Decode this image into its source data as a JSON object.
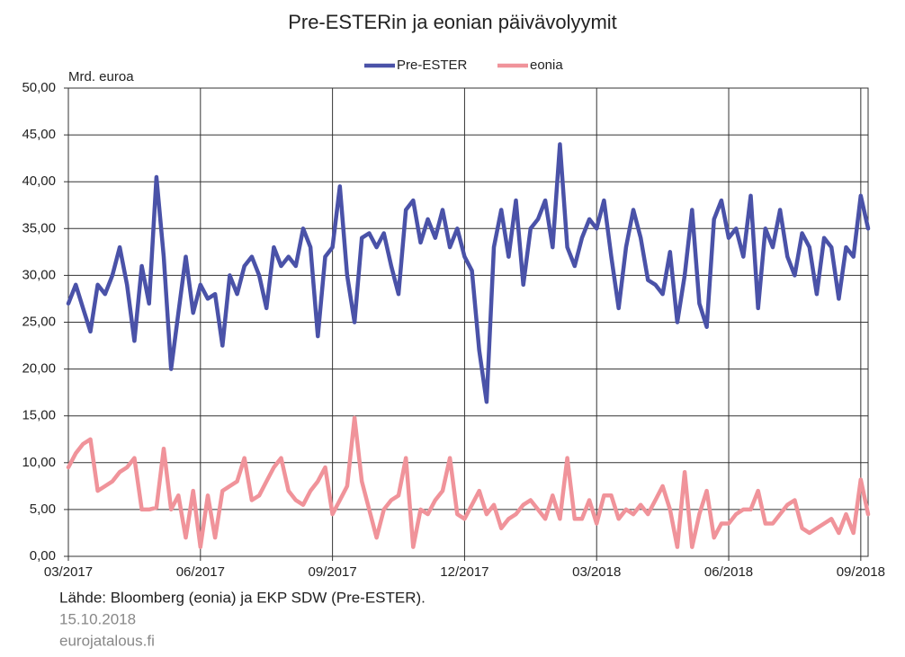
{
  "chart_data": {
    "type": "line",
    "title": "Pre-ESTERin ja eonian  päivävolyymit",
    "y_label": "Mrd. euroa",
    "source": "Lähde: Bloomberg (eonia) ja EKP SDW (Pre-ESTER).",
    "date": "15.10.2018",
    "site": "eurojatalous.fi",
    "legend": "top",
    "grid": true,
    "ylim": [
      0,
      50
    ],
    "yticks": [
      {
        "value": 0,
        "label": "0,00"
      },
      {
        "value": 5,
        "label": "5,00"
      },
      {
        "value": 10,
        "label": "10,00"
      },
      {
        "value": 15,
        "label": "15,00"
      },
      {
        "value": 20,
        "label": "20,00"
      },
      {
        "value": 25,
        "label": "25,00"
      },
      {
        "value": 30,
        "label": "30,00"
      },
      {
        "value": 35,
        "label": "35,00"
      },
      {
        "value": 40,
        "label": "40,00"
      },
      {
        "value": 45,
        "label": "45,00"
      },
      {
        "value": 50,
        "label": "50,00"
      }
    ],
    "categories": [
      "03/2017",
      null,
      null,
      null,
      null,
      null,
      null,
      null,
      null,
      null,
      null,
      null,
      null,
      null,
      null,
      null,
      null,
      null,
      "06/2017",
      null,
      null,
      null,
      null,
      null,
      null,
      null,
      null,
      null,
      null,
      null,
      null,
      null,
      null,
      null,
      null,
      null,
      "09/2017",
      null,
      null,
      null,
      null,
      null,
      null,
      null,
      null,
      null,
      null,
      null,
      null,
      null,
      null,
      null,
      null,
      null,
      "12/2017",
      null,
      null,
      null,
      null,
      null,
      null,
      null,
      null,
      null,
      null,
      null,
      null,
      null,
      null,
      null,
      null,
      null,
      "03/2018",
      null,
      null,
      null,
      null,
      null,
      null,
      null,
      null,
      null,
      null,
      null,
      null,
      null,
      null,
      null,
      null,
      null,
      "06/2018",
      null,
      null,
      null,
      null,
      null,
      null,
      null,
      null,
      null,
      null,
      null,
      null,
      null,
      null,
      null,
      null,
      null,
      "09/2018",
      null
    ],
    "series": [
      {
        "name": "Pre-ESTER",
        "color": "#4a52a8",
        "values": [
          27,
          29,
          26.5,
          24,
          29,
          28,
          30,
          33,
          29,
          23,
          31,
          27,
          40.5,
          32,
          20,
          26,
          32,
          26,
          29,
          27.5,
          28,
          22.5,
          30,
          28,
          31,
          32,
          30,
          26.5,
          33,
          31,
          32,
          31,
          35,
          33,
          23.5,
          32,
          33,
          39.5,
          30,
          25,
          34,
          34.5,
          33,
          34.5,
          31,
          28,
          37,
          38,
          33.5,
          36,
          34,
          37,
          33,
          35,
          32,
          30.5,
          22,
          16.5,
          33,
          37,
          32,
          38,
          29,
          35,
          36,
          38,
          33,
          44,
          33,
          31,
          34,
          36,
          35,
          38,
          32,
          26.5,
          33,
          37,
          34,
          29.5,
          29,
          28,
          32.5,
          25,
          30,
          37,
          27,
          24.5,
          36,
          38,
          34,
          35,
          32,
          38.5,
          26.5,
          35,
          33,
          37,
          32,
          30,
          34.5,
          33,
          28,
          34,
          33,
          27.5,
          33,
          32,
          38.5,
          35
        ]
      },
      {
        "name": "eonia",
        "color": "#f0939a",
        "values": [
          9.5,
          11,
          12,
          12.5,
          7,
          7.5,
          8,
          9,
          9.5,
          10.5,
          5,
          5,
          5.2,
          11.5,
          5,
          6.5,
          2,
          7,
          1,
          6.5,
          2,
          7,
          7.5,
          8,
          10.5,
          6,
          6.5,
          8,
          9.5,
          10.5,
          7,
          6,
          5.5,
          7,
          8,
          9.5,
          4.5,
          6,
          7.5,
          14.8,
          8,
          5,
          2,
          5,
          6,
          6.5,
          10.5,
          1,
          5,
          4.5,
          6,
          7,
          10.5,
          4.5,
          4,
          5.5,
          7,
          4.5,
          5.5,
          3,
          4,
          4.5,
          5.5,
          6,
          5,
          4,
          6.5,
          4,
          10.5,
          4,
          4,
          6,
          3.5,
          6.5,
          6.5,
          4,
          5,
          4.5,
          5.5,
          4.5,
          6,
          7.5,
          5,
          1,
          9,
          1,
          4.5,
          7,
          2,
          3.5,
          3.5,
          4.5,
          5,
          5,
          7,
          3.5,
          3.5,
          4.5,
          5.5,
          6,
          3,
          2.5,
          3,
          3.5,
          4,
          2.5,
          4.5,
          2.5,
          8.2,
          4.5
        ]
      }
    ]
  }
}
